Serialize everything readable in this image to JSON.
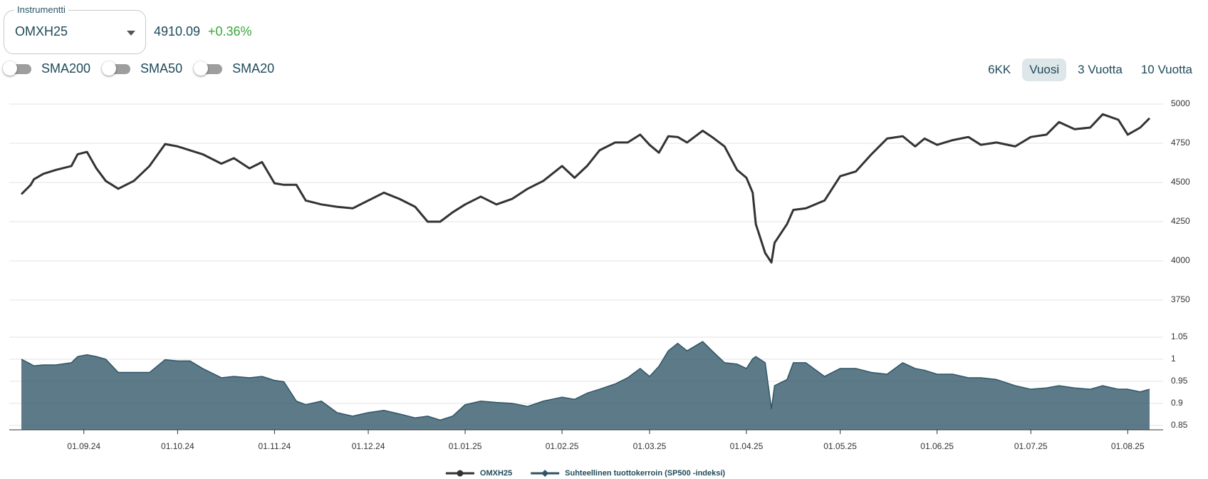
{
  "instrument": {
    "label": "Instrumentti",
    "value": "OMXH25",
    "price": "4910.09",
    "change": "+0.36%"
  },
  "indicators": [
    "SMA200",
    "SMA50",
    "SMA20"
  ],
  "ranges": [
    "6KK",
    "Vuosi",
    "3 Vuotta",
    "10 Vuotta"
  ],
  "selected_range": "Vuosi",
  "chart_data": {
    "type": "line",
    "grid": true,
    "legend": "bottom",
    "x": [
      "2024-08-12",
      "2024-08-15",
      "2024-08-16",
      "2024-08-19",
      "2024-08-23",
      "2024-08-28",
      "2024-08-30",
      "2024-09-02",
      "2024-09-05",
      "2024-09-08",
      "2024-09-12",
      "2024-09-17",
      "2024-09-22",
      "2024-09-27",
      "2024-10-01",
      "2024-10-05",
      "2024-10-09",
      "2024-10-15",
      "2024-10-19",
      "2024-10-24",
      "2024-10-28",
      "2024-11-01",
      "2024-11-04",
      "2024-11-08",
      "2024-11-11",
      "2024-11-16",
      "2024-11-21",
      "2024-11-26",
      "2024-12-01",
      "2024-12-06",
      "2024-12-11",
      "2024-12-16",
      "2024-12-20",
      "2024-12-24",
      "2024-12-28",
      "2025-01-01",
      "2025-01-06",
      "2025-01-11",
      "2025-01-16",
      "2025-01-21",
      "2025-01-26",
      "2025-02-01",
      "2025-02-05",
      "2025-02-09",
      "2025-02-13",
      "2025-02-18",
      "2025-02-22",
      "2025-02-26",
      "2025-03-01",
      "2025-03-04",
      "2025-03-07",
      "2025-03-10",
      "2025-03-13",
      "2025-03-18",
      "2025-03-21",
      "2025-03-25",
      "2025-03-29",
      "2025-04-01",
      "2025-04-03",
      "2025-04-04",
      "2025-04-07",
      "2025-04-09",
      "2025-04-10",
      "2025-04-14",
      "2025-04-16",
      "2025-04-20",
      "2025-04-26",
      "2025-05-01",
      "2025-05-06",
      "2025-05-11",
      "2025-05-16",
      "2025-05-21",
      "2025-05-25",
      "2025-05-28",
      "2025-06-01",
      "2025-06-06",
      "2025-06-11",
      "2025-06-15",
      "2025-06-20",
      "2025-06-26",
      "2025-07-01",
      "2025-07-06",
      "2025-07-10",
      "2025-07-15",
      "2025-07-20",
      "2025-07-24",
      "2025-07-29",
      "2025-08-01",
      "2025-08-05",
      "2025-08-08"
    ],
    "xlim": [
      "2024-08-12",
      "2025-08-08"
    ],
    "xticks": [
      {
        "value": "2024-09-01",
        "label": "01.09.24"
      },
      {
        "value": "2024-10-01",
        "label": "01.10.24"
      },
      {
        "value": "2024-11-01",
        "label": "01.11.24"
      },
      {
        "value": "2024-12-01",
        "label": "01.12.24"
      },
      {
        "value": "2025-01-01",
        "label": "01.01.25"
      },
      {
        "value": "2025-02-01",
        "label": "01.02.25"
      },
      {
        "value": "2025-03-01",
        "label": "01.03.25"
      },
      {
        "value": "2025-04-01",
        "label": "01.04.25"
      },
      {
        "value": "2025-05-01",
        "label": "01.05.25"
      },
      {
        "value": "2025-06-01",
        "label": "01.06.25"
      },
      {
        "value": "2025-07-01",
        "label": "01.07.25"
      },
      {
        "value": "2025-08-01",
        "label": "01.08.25"
      }
    ],
    "ylim": [
      3750,
      5000
    ],
    "yticks": [
      3750,
      4000,
      4250,
      4500,
      4750,
      5000
    ],
    "y2lim": [
      0.84,
      1.05
    ],
    "y2ticks": [
      0.85,
      0.9,
      0.95,
      1,
      1.05
    ],
    "series": [
      {
        "name": "OMXH25",
        "type": "line",
        "color": "#333333",
        "values": [
          4425,
          4485,
          4520,
          4555,
          4580,
          4605,
          4680,
          4695,
          4590,
          4510,
          4460,
          4510,
          4605,
          4745,
          4730,
          4705,
          4680,
          4620,
          4655,
          4590,
          4630,
          4495,
          4485,
          4485,
          4385,
          4360,
          4345,
          4335,
          4385,
          4435,
          4395,
          4345,
          4250,
          4250,
          4310,
          4360,
          4410,
          4360,
          4395,
          4460,
          4510,
          4605,
          4530,
          4605,
          4705,
          4755,
          4755,
          4805,
          4740,
          4690,
          4795,
          4790,
          4755,
          4830,
          4790,
          4730,
          4580,
          4530,
          4435,
          4235,
          4050,
          3990,
          4115,
          4235,
          4325,
          4335,
          4385,
          4540,
          4570,
          4680,
          4780,
          4795,
          4730,
          4780,
          4740,
          4770,
          4790,
          4740,
          4755,
          4730,
          4790,
          4805,
          4885,
          4840,
          4850,
          4935,
          4900,
          4805,
          4850,
          4910
        ]
      },
      {
        "name": "Suhteellinen tuottokerroin (SP500 -indeksi)",
        "type": "area",
        "axis": "y2",
        "color": "#2f5566",
        "values": [
          1.0,
          0.989,
          0.985,
          0.987,
          0.987,
          0.992,
          1.006,
          1.01,
          1.006,
          1.0,
          0.97,
          0.97,
          0.97,
          0.999,
          0.996,
          0.996,
          0.979,
          0.958,
          0.961,
          0.958,
          0.961,
          0.952,
          0.949,
          0.905,
          0.897,
          0.905,
          0.879,
          0.871,
          0.879,
          0.884,
          0.876,
          0.867,
          0.871,
          0.862,
          0.871,
          0.897,
          0.905,
          0.902,
          0.9,
          0.893,
          0.905,
          0.914,
          0.909,
          0.923,
          0.932,
          0.944,
          0.958,
          0.979,
          0.961,
          0.984,
          1.019,
          1.036,
          1.019,
          1.04,
          1.019,
          0.992,
          0.989,
          0.979,
          1.001,
          1.006,
          0.992,
          0.888,
          0.94,
          0.954,
          0.992,
          0.992,
          0.961,
          0.979,
          0.979,
          0.97,
          0.966,
          0.992,
          0.979,
          0.975,
          0.966,
          0.966,
          0.958,
          0.958,
          0.954,
          0.94,
          0.932,
          0.935,
          0.94,
          0.935,
          0.932,
          0.94,
          0.932,
          0.932,
          0.926,
          0.932
        ]
      }
    ]
  }
}
